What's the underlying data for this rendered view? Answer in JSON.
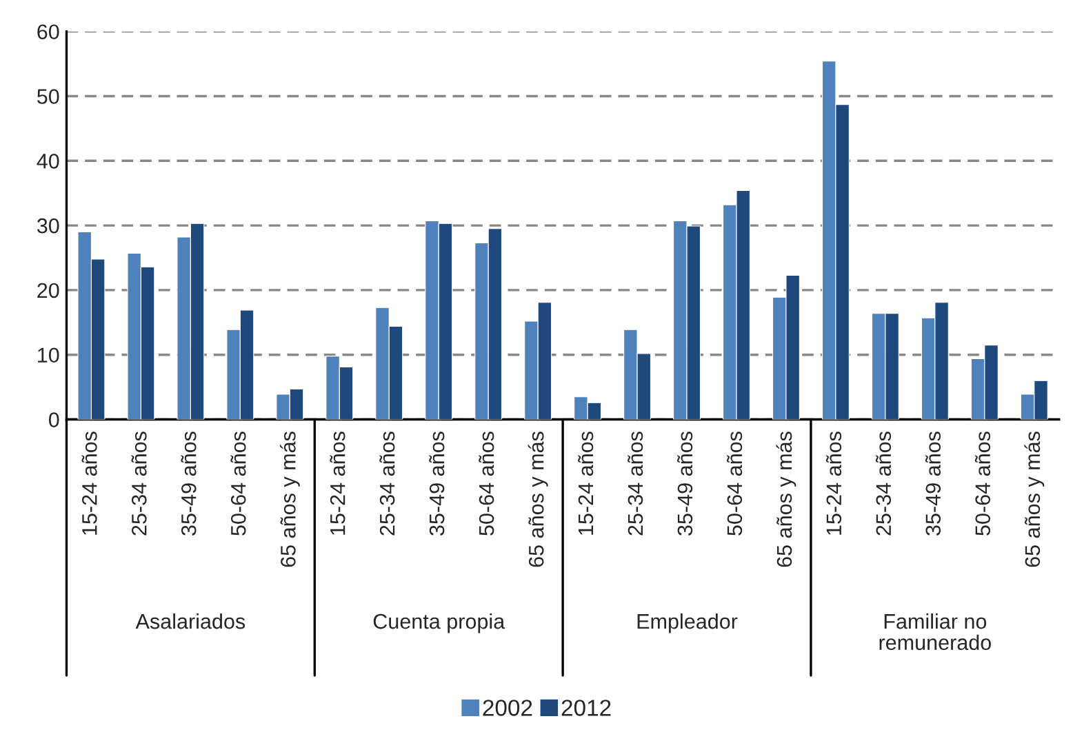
{
  "chart_data": {
    "type": "bar",
    "categories": [
      "15-24 años",
      "25-34 años",
      "35-49 años",
      "50-64 años",
      "65 años y más",
      "15-24 años",
      "25-34 años",
      "35-49 años",
      "50-64 años",
      "65 años y más",
      "15-24 años",
      "25-34 años",
      "35-49 años",
      "50-64 años",
      "65 años y más",
      "15-24 años",
      "25-34 años",
      "35-49 años",
      "50-64 años",
      "65 años y más"
    ],
    "series": [
      {
        "name": "2002",
        "color": "#4f81bd",
        "values": [
          29.0,
          25.7,
          28.2,
          13.9,
          3.9,
          9.8,
          17.3,
          30.7,
          27.3,
          15.2,
          3.5,
          13.9,
          30.7,
          33.2,
          18.9,
          55.4,
          16.4,
          15.7,
          9.4,
          3.9
        ]
      },
      {
        "name": "2012",
        "color": "#1f497d",
        "values": [
          24.8,
          23.6,
          30.3,
          16.9,
          4.7,
          8.1,
          14.4,
          30.3,
          29.5,
          18.1,
          2.6,
          10.2,
          29.9,
          35.4,
          22.3,
          48.7,
          16.4,
          18.1,
          11.5,
          6.0
        ]
      }
    ],
    "annotations": [
      "Asalariados",
      "Cuenta propia",
      "Empleador",
      "Familiar no\nremunerado"
    ],
    "ylim": [
      0,
      60
    ],
    "yticks": [
      0,
      10,
      20,
      30,
      40,
      50,
      60
    ],
    "grid": "y",
    "legend": "bottom"
  }
}
